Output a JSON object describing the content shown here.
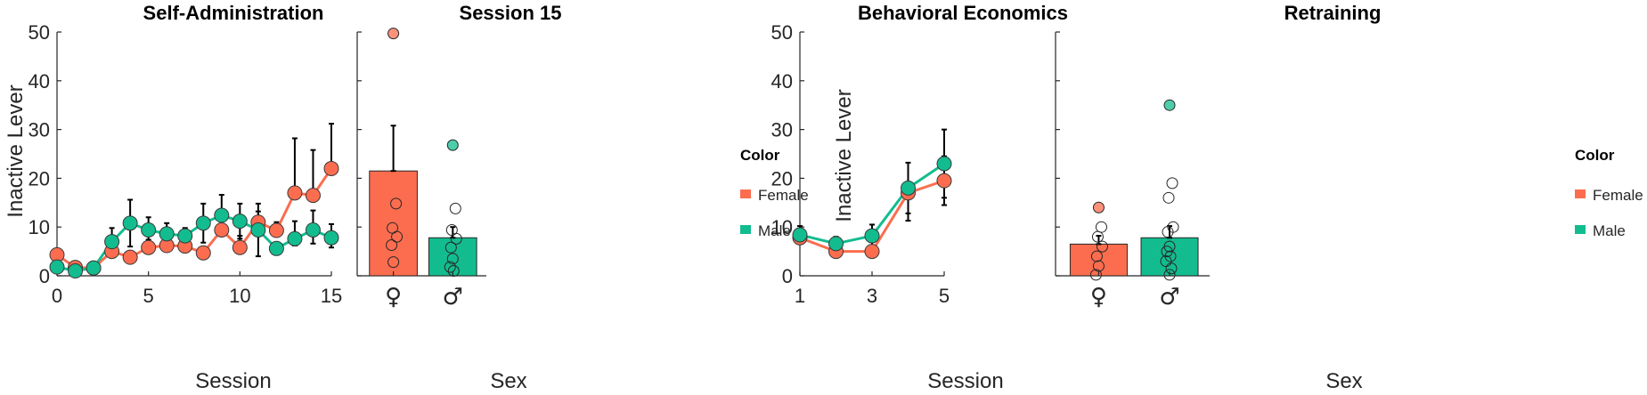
{
  "colors": {
    "female": "#FC6D4F",
    "male": "#13BC8F",
    "axis": "#262626",
    "errorbar": "#000000"
  },
  "legend": {
    "title": "Color",
    "entries": [
      "Female",
      "Male"
    ]
  },
  "chart_data": [
    {
      "type": "line",
      "title": "Self-Administration",
      "xlabel": "Session",
      "ylabel": "Inactive Lever",
      "xlim": [
        0,
        15
      ],
      "ylim": [
        0,
        50
      ],
      "xticks": [
        "0",
        "5",
        "10",
        "15"
      ],
      "yticks": [
        "0",
        "10",
        "20",
        "30",
        "40",
        "50"
      ],
      "x": [
        0,
        1,
        2,
        3,
        4,
        5,
        6,
        7,
        8,
        9,
        10,
        11,
        12,
        13,
        14,
        15
      ],
      "series": [
        {
          "name": "Female",
          "values": [
            4.3,
            1.7,
            1.6,
            5.0,
            3.8,
            5.8,
            6.2,
            6.1,
            4.7,
            9.4,
            5.8,
            11.0,
            9.3,
            17.0,
            16.5,
            22.0
          ],
          "upper": [
            4.3,
            2.2,
            2.0,
            5.8,
            4.6,
            7.4,
            7.6,
            7.2,
            5.6,
            12.0,
            8.2,
            13.2,
            11.0,
            28.2,
            25.8,
            31.2
          ]
        },
        {
          "name": "Male",
          "values": [
            1.8,
            1.0,
            1.6,
            7.0,
            10.8,
            9.4,
            8.6,
            8.2,
            10.8,
            12.4,
            11.2,
            9.4,
            5.6,
            7.6,
            9.4,
            7.8
          ],
          "upper": [
            1.8,
            1.0,
            1.6,
            9.8,
            15.6,
            12.0,
            10.8,
            9.8,
            14.8,
            16.6,
            14.8,
            14.8,
            5.6,
            11.2,
            13.4,
            10.6
          ],
          "lower": [
            1.8,
            1.0,
            1.6,
            4.2,
            6.0,
            6.8,
            6.4,
            6.6,
            6.8,
            8.2,
            7.6,
            4.0,
            5.6,
            6.2,
            6.6,
            5.8
          ]
        }
      ]
    },
    {
      "type": "bar",
      "title": "Session 15",
      "xlabel": "Sex",
      "ylim": [
        0,
        50
      ],
      "categories": [
        "♀",
        "♂"
      ],
      "values": [
        21.5,
        7.8
      ],
      "upper": [
        30.8,
        10.0
      ],
      "points": [
        [
          49.7,
          14.8,
          9.8,
          8.0,
          6.3,
          2.8
        ],
        [
          26.8,
          13.8,
          9.4,
          7.6,
          5.8,
          3.5,
          1.8,
          1.0
        ]
      ]
    },
    {
      "type": "line",
      "title": "Behavioral Economics",
      "xlabel": "Session",
      "ylabel": "Inactive Lever",
      "xlim": [
        0.5,
        5.5
      ],
      "ylim": [
        0,
        50
      ],
      "xticks": [
        "1",
        "3",
        "5"
      ],
      "yticks": [
        "0",
        "10",
        "20",
        "30",
        "40",
        "50"
      ],
      "x": [
        1,
        2,
        3,
        4,
        5
      ],
      "series": [
        {
          "name": "Female",
          "values": [
            7.8,
            5.0,
            5.0,
            17.0,
            19.5
          ],
          "upper": [
            8.6,
            6.2,
            6.2,
            18.6,
            24.5
          ],
          "lower": [
            7.0,
            3.8,
            3.8,
            11.3,
            14.5
          ]
        },
        {
          "name": "Male",
          "values": [
            8.4,
            6.6,
            8.2,
            18.0,
            23.0
          ],
          "upper": [
            10.2,
            8.0,
            10.5,
            23.2,
            30.0
          ],
          "lower": [
            6.6,
            5.2,
            5.9,
            12.8,
            16.0
          ]
        }
      ]
    },
    {
      "type": "bar",
      "title": "Retraining",
      "xlabel": "Sex",
      "ylim": [
        0,
        50
      ],
      "categories": [
        "♀",
        "♂"
      ],
      "values": [
        6.5,
        7.8
      ],
      "upper": [
        8.2,
        10.2
      ],
      "points": [
        [
          14.0,
          10.0,
          8.0,
          6.0,
          4.0,
          2.0,
          0.2
        ],
        [
          35.0,
          19.0,
          16.0,
          10.0,
          9.0,
          6.0,
          5.0,
          4.0,
          3.0,
          1.5,
          0.2
        ]
      ]
    }
  ]
}
